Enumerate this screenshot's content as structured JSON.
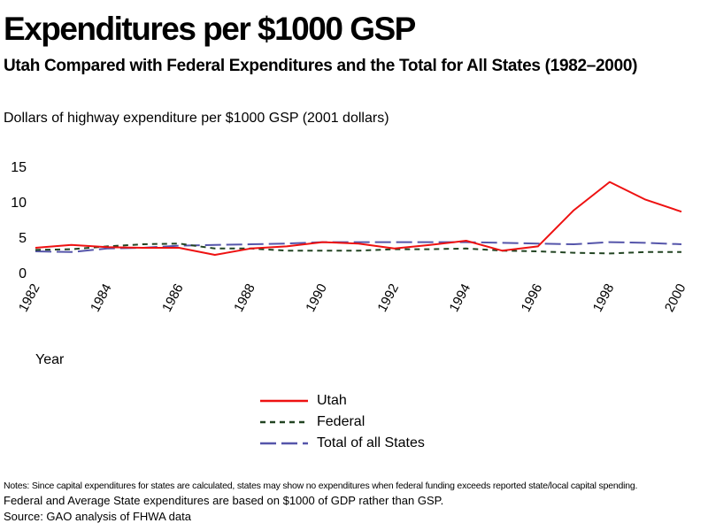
{
  "header": {
    "title": "Expenditures per $1000 GSP",
    "subtitle": "Utah Compared with Federal Expenditures and the Total for All States (1982–2000)",
    "ylabel": "Dollars of highway expenditure per $1000 GSP (2001 dollars)",
    "xlabel": "Year"
  },
  "notes": {
    "line1": "Notes: Since capital expenditures for states are calculated, states may show no expenditures when federal funding exceeds reported state/local capital spending.",
    "line2": "Federal and Average State expenditures are based on $1000 of GDP rather than GSP.",
    "line3": "Source: GAO analysis of FHWA data"
  },
  "chart_data": {
    "type": "line",
    "title": "Expenditures per $1000 GSP",
    "subtitle": "Utah Compared with Federal Expenditures and the Total for All States (1982–2000)",
    "xlabel": "Year",
    "ylabel": "Dollars of highway expenditure per $1000 GSP (2001 dollars)",
    "x": [
      1982,
      1983,
      1984,
      1985,
      1986,
      1987,
      1988,
      1989,
      1990,
      1991,
      1992,
      1993,
      1994,
      1995,
      1996,
      1997,
      1998,
      1999,
      2000
    ],
    "x_tick_labels": [
      "1982",
      "1984",
      "1986",
      "1988",
      "1990",
      "1992",
      "1994",
      "1996",
      "1998",
      "2000"
    ],
    "y_ticks": [
      0,
      5,
      10,
      15
    ],
    "ylim": [
      0,
      15
    ],
    "xlim": [
      1982,
      2000
    ],
    "grid": false,
    "legend_position": "bottom-center",
    "series": [
      {
        "name": "Utah",
        "color": "#ee1111",
        "dash": "solid",
        "values": [
          3.5,
          3.9,
          3.6,
          3.5,
          3.5,
          2.5,
          3.4,
          3.7,
          4.3,
          4.1,
          3.4,
          3.9,
          4.5,
          3.1,
          3.7,
          8.8,
          12.8,
          10.3,
          8.6
        ]
      },
      {
        "name": "Federal",
        "color": "#224422",
        "dash": "short",
        "values": [
          3.2,
          3.3,
          3.7,
          4.0,
          4.1,
          3.4,
          3.4,
          3.1,
          3.1,
          3.1,
          3.3,
          3.3,
          3.4,
          3.1,
          3.0,
          2.8,
          2.7,
          2.9,
          2.9
        ]
      },
      {
        "name": "Total of all States",
        "color": "#5555aa",
        "dash": "long",
        "values": [
          3.0,
          2.9,
          3.4,
          3.5,
          3.8,
          3.9,
          4.0,
          4.1,
          4.3,
          4.3,
          4.3,
          4.3,
          4.3,
          4.2,
          4.1,
          4.0,
          4.3,
          4.2,
          4.0
        ]
      }
    ]
  }
}
